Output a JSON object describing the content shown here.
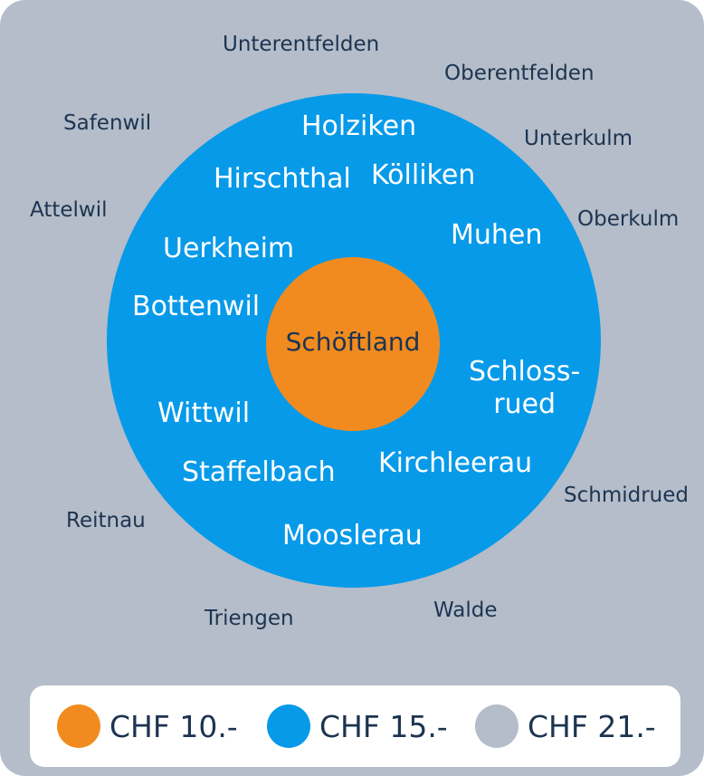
{
  "zones": {
    "center": {
      "places": [
        "Schöftland"
      ],
      "color": "#f18b1f",
      "price": "CHF 10.-"
    },
    "inner": {
      "places": [
        "Holziken",
        "Hirschthal",
        "Kölliken",
        "Muhen",
        "Uerkheim",
        "Bottenwil",
        "Schloss-\nrued",
        "Wittwil",
        "Staffelbach",
        "Kirchleerau",
        "Mooslerau"
      ],
      "color": "#079ae9",
      "price": "CHF 15.-"
    },
    "outer": {
      "places": [
        "Unterentfelden",
        "Oberentfelden",
        "Safenwil",
        "Unterkulm",
        "Attelwil",
        "Oberkulm",
        "Schmidrued",
        "Reitnau",
        "Triengen",
        "Walde"
      ],
      "color": "#b4bdc9",
      "price": "CHF 21.-"
    }
  },
  "legend": [
    {
      "label": "CHF 10.-",
      "color": "#f18b1f"
    },
    {
      "label": "CHF 15.-",
      "color": "#079ae9"
    },
    {
      "label": "CHF 21.-",
      "color": "#b4bdc9"
    }
  ]
}
